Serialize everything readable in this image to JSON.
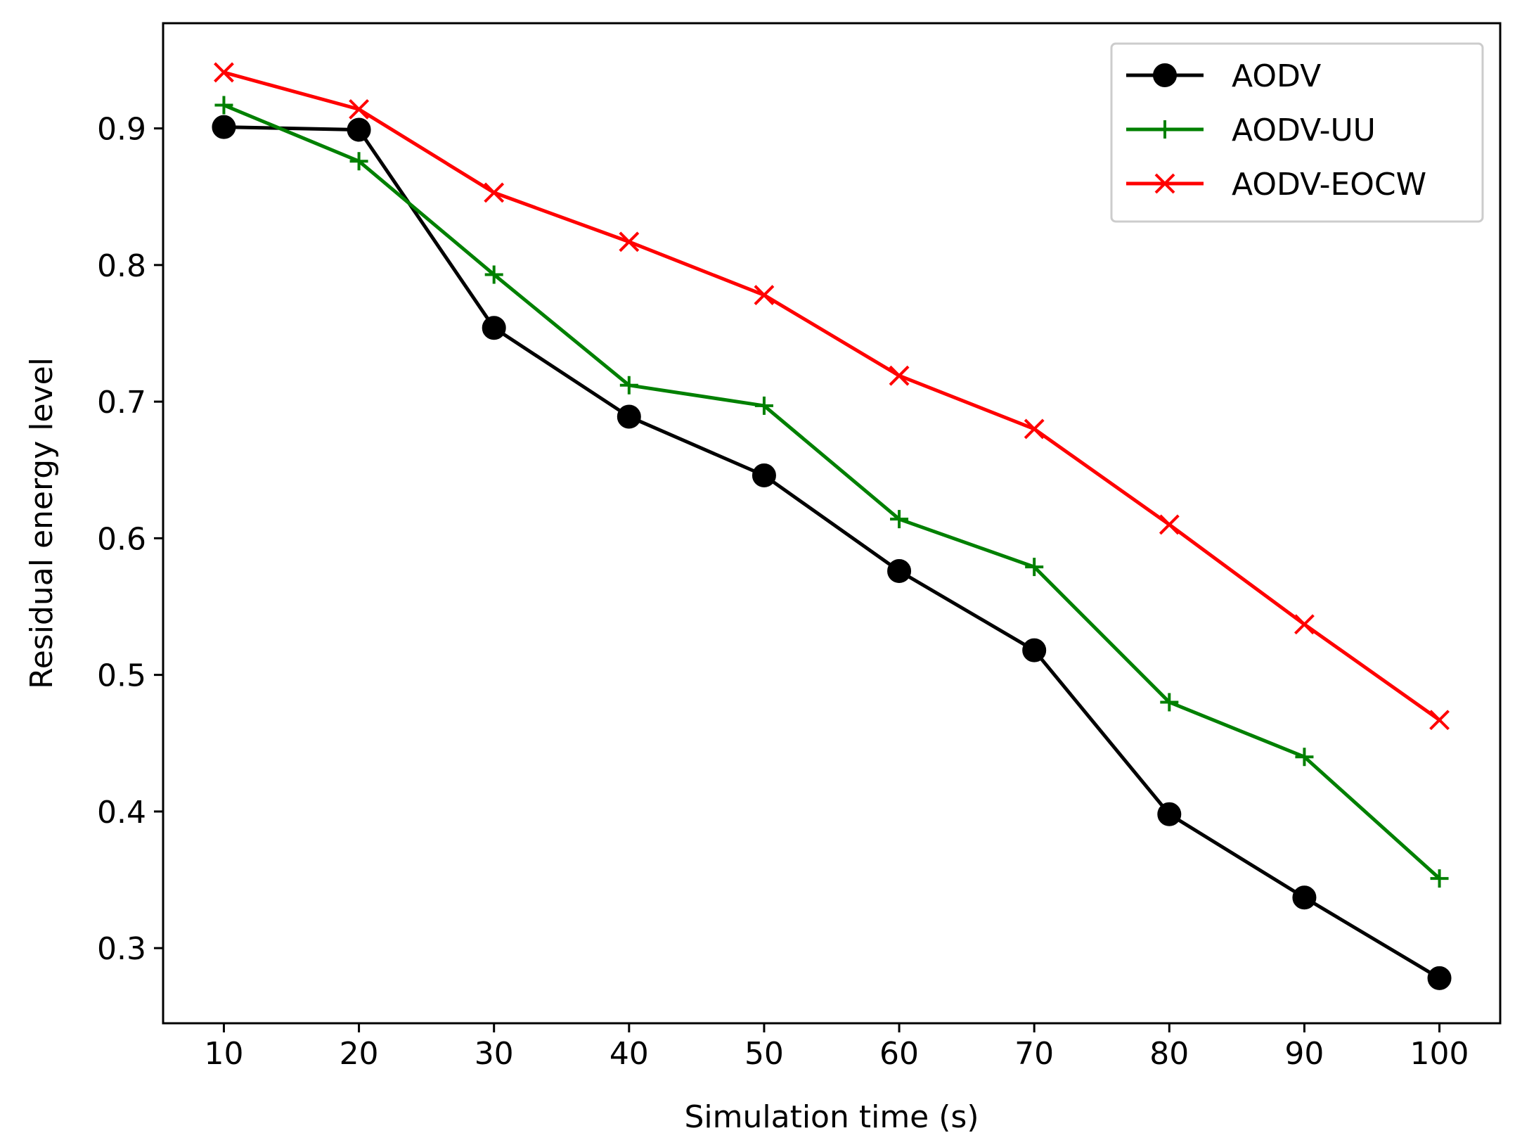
{
  "chart_data": {
    "type": "line",
    "title": "",
    "xlabel": "Simulation time (s)",
    "ylabel": "Residual energy level",
    "x": [
      10,
      20,
      30,
      40,
      50,
      60,
      70,
      80,
      90,
      100
    ],
    "x_ticks": [
      "10",
      "20",
      "30",
      "40",
      "50",
      "60",
      "70",
      "80",
      "90",
      "100"
    ],
    "y_ticks": [
      "0.3",
      "0.4",
      "0.5",
      "0.6",
      "0.7",
      "0.8",
      "0.9"
    ],
    "xlim": [
      5.5,
      104.5
    ],
    "ylim": [
      0.245,
      0.977
    ],
    "grid": false,
    "legend_position": "top-right",
    "series": [
      {
        "name": "AODV",
        "color": "#000000",
        "marker": "circle",
        "values": [
          0.901,
          0.899,
          0.754,
          0.689,
          0.646,
          0.576,
          0.518,
          0.398,
          0.337,
          0.278
        ]
      },
      {
        "name": "AODV-UU",
        "color": "#008000",
        "marker": "plus",
        "values": [
          0.917,
          0.876,
          0.793,
          0.712,
          0.697,
          0.614,
          0.579,
          0.48,
          0.44,
          0.351
        ]
      },
      {
        "name": "AODV-EOCW",
        "color": "#ff0000",
        "marker": "x",
        "values": [
          0.941,
          0.914,
          0.853,
          0.817,
          0.778,
          0.719,
          0.68,
          0.61,
          0.537,
          0.467
        ]
      }
    ]
  }
}
